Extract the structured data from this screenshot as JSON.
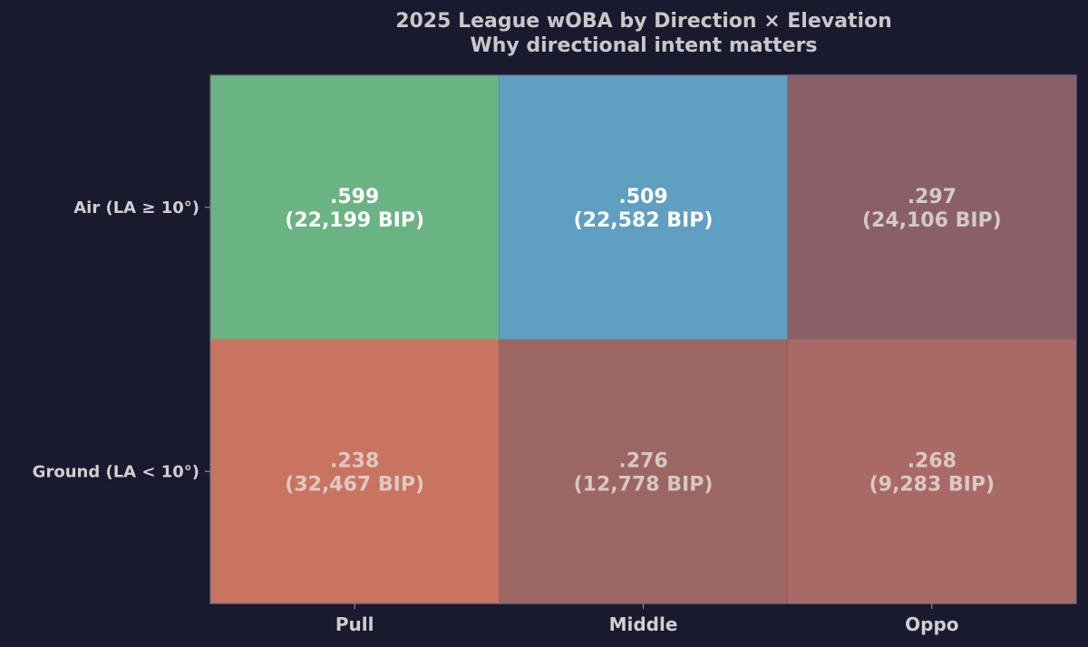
{
  "chart_data": {
    "type": "heatmap",
    "title": "2025 League wOBA by Direction × Elevation",
    "subtitle": "Why directional intent matters",
    "x_categories": [
      "Pull",
      "Middle",
      "Oppo"
    ],
    "y_categories": [
      "Air (LA ≥ 10°)",
      "Ground (LA < 10°)"
    ],
    "cells": [
      [
        {
          "value_label": ".599",
          "count_label": "(22,199 BIP)",
          "woba": 0.599,
          "bip": 22199,
          "color": "#69b482",
          "text_color": "#ffffff"
        },
        {
          "value_label": ".509",
          "count_label": "(22,582 BIP)",
          "woba": 0.509,
          "bip": 22582,
          "color": "#5f9fc2",
          "text_color": "#ffffff"
        },
        {
          "value_label": ".297",
          "count_label": "(24,106 BIP)",
          "woba": 0.297,
          "bip": 24106,
          "color": "#8a5f68",
          "text_color": "#d2cacc"
        }
      ],
      [
        {
          "value_label": ".238",
          "count_label": "(32,467 BIP)",
          "woba": 0.238,
          "bip": 32467,
          "color": "#c87461",
          "text_color": "#e0c7c3"
        },
        {
          "value_label": ".276",
          "count_label": "(12,778 BIP)",
          "woba": 0.276,
          "bip": 12778,
          "color": "#9c6662",
          "text_color": "#d8c6c4"
        },
        {
          "value_label": ".268",
          "count_label": "(9,283 BIP)",
          "woba": 0.268,
          "bip": 9283,
          "color": "#a96a65",
          "text_color": "#dbc8c6"
        }
      ]
    ]
  },
  "colors": {
    "background": "#1a1a2e",
    "axis": "#8a8aa0",
    "text": "#cfcfcf"
  }
}
